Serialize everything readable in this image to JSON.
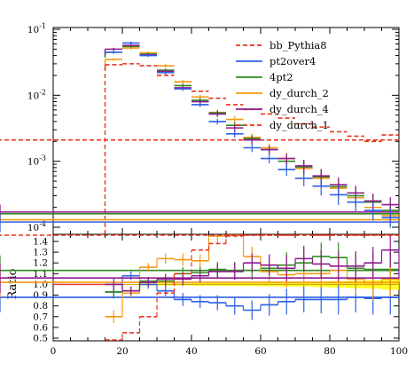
{
  "chart_data": {
    "type": "line",
    "x_edges": [
      0,
      15,
      20,
      25,
      30,
      35,
      40,
      45,
      50,
      55,
      60,
      65,
      70,
      75,
      80,
      85,
      90,
      95,
      100
    ],
    "x_range": [
      0,
      100
    ],
    "x_ticks": [
      0,
      20,
      40,
      60,
      80,
      100
    ],
    "x_tick_labels": [
      "0",
      "20",
      "40",
      "60",
      "80",
      "100"
    ],
    "main_plot": {
      "y_scale": "log",
      "y_range": [
        0.0001,
        0.1
      ],
      "y_ticks": [
        0.0001,
        0.001,
        0.01,
        0.1
      ],
      "y_tick_exponents": [
        "-4",
        "-3",
        "-2",
        "-1"
      ],
      "y_tick_base": "10",
      "legend_position": "top-right",
      "series": [
        {
          "name": "bb_Pythia8",
          "color": "#e8321e",
          "dashed": true,
          "style": "reference",
          "values": [
            0,
            0.029,
            0.03,
            0.028,
            0.02,
            0.016,
            0.0115,
            0.009,
            0.0072,
            0.0061,
            0.0052,
            0.0045,
            0.0037,
            0.0033,
            0.0028,
            0.0024,
            0.002,
            0.0025,
            0.0021
          ]
        },
        {
          "name": "pt2over4",
          "color": "#2d5fe6",
          "dashed": false,
          "values": [
            0,
            0.045,
            0.062,
            0.04,
            0.022,
            0.0125,
            0.0072,
            0.004,
            0.0026,
            0.0016,
            0.0011,
            0.00075,
            0.00055,
            0.00042,
            0.00031,
            0.00024,
            0.00018,
            0.00014,
            0.00012
          ]
        },
        {
          "name": "4pt2",
          "color": "#2e8b1e",
          "dashed": false,
          "values": [
            0,
            0.045,
            0.055,
            0.042,
            0.024,
            0.014,
            0.0084,
            0.0054,
            0.0035,
            0.0022,
            0.0015,
            0.001,
            0.00082,
            0.00058,
            0.00041,
            0.0003,
            0.00024,
            0.00018,
            0.00016
          ]
        },
        {
          "name": "dy_durch_2",
          "color": "#f59a14",
          "dashed": false,
          "values": [
            0,
            0.035,
            0.052,
            0.044,
            0.028,
            0.016,
            0.0094,
            0.0055,
            0.0043,
            0.0023,
            0.0016,
            0.0011,
            0.00078,
            0.00055,
            0.00039,
            0.00028,
            0.0002,
            0.00015,
            0.00013
          ]
        },
        {
          "name": "dy_durch_4",
          "color": "#8e1a8e",
          "dashed": false,
          "values": [
            0,
            0.05,
            0.057,
            0.041,
            0.023,
            0.013,
            0.008,
            0.0052,
            0.0032,
            0.0021,
            0.0015,
            0.0011,
            0.00085,
            0.0006,
            0.00044,
            0.00033,
            0.00025,
            0.00022,
            0.00017
          ]
        },
        {
          "name": "dy_durch_1",
          "color": "#e8321e",
          "dashed": true,
          "style": "data",
          "values": [
            0,
            0.0,
            0.0,
            0.0,
            0.0,
            0.0,
            0.0,
            0.0,
            0.0,
            0.0,
            0.0,
            0.0,
            0.0,
            0.0,
            0.0,
            0.0,
            0.0,
            0.0,
            0.0
          ]
        }
      ]
    },
    "ratio_plot": {
      "ylabel": "Ratio",
      "y_range": [
        0.5,
        1.5
      ],
      "y_ticks": [
        0.5,
        0.6,
        0.7,
        0.8,
        0.9,
        1.0,
        1.1,
        1.2,
        1.3,
        1.4
      ],
      "y_tick_labels": [
        "0.5",
        "0.6",
        "0.7",
        "0.8",
        "0.9",
        "1.0",
        "1.1",
        "1.2",
        "1.3",
        "1.4"
      ],
      "band_color": "#ffff00",
      "series": [
        {
          "name": "pt2over4",
          "color": "#2d5fe6",
          "values": [
            1.0,
            0.93,
            1.08,
            1.0,
            0.94,
            0.86,
            0.84,
            0.83,
            0.8,
            0.76,
            0.81,
            0.84,
            0.86,
            0.86,
            0.86,
            0.88,
            0.87,
            0.88,
            0.88
          ]
        },
        {
          "name": "4pt2",
          "color": "#2e8b1e",
          "values": [
            1.0,
            0.93,
            0.94,
            1.03,
            1.03,
            1.1,
            1.11,
            1.14,
            1.13,
            1.13,
            1.15,
            1.18,
            1.2,
            1.26,
            1.25,
            1.15,
            1.14,
            1.14,
            1.13
          ]
        },
        {
          "name": "dy_durch_2",
          "color": "#f59a14",
          "values": [
            1.0,
            0.7,
            0.92,
            1.16,
            1.24,
            1.23,
            1.22,
            1.45,
            1.48,
            1.26,
            1.12,
            1.09,
            1.1,
            1.1,
            1.13,
            1.05,
            1.0,
            1.05,
            1.02
          ]
        },
        {
          "name": "dy_durch_4",
          "color": "#8e1a8e",
          "values": [
            1.0,
            1.0,
            0.94,
            1.02,
            1.05,
            1.05,
            1.08,
            1.12,
            1.12,
            1.2,
            1.18,
            1.15,
            1.24,
            1.19,
            1.17,
            1.17,
            1.2,
            1.32,
            1.06
          ]
        },
        {
          "name": "bb_Pythia8",
          "color": "#e8321e",
          "dashed": true,
          "values": [
            1.0,
            0.35,
            0.55,
            0.7,
            0.92,
            1.1,
            1.32,
            1.38,
            1.45,
            1.55,
            1.55,
            1.55,
            1.55,
            1.55,
            1.55,
            1.55,
            1.55,
            1.55,
            1.55
          ]
        }
      ]
    }
  }
}
